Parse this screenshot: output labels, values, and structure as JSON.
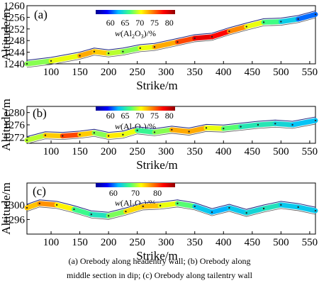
{
  "caption": {
    "line1": "(a) Orebody along headentry wall; (b) Orebody along",
    "line2": "middle section in dip; (c) Orebody along tailentry wall"
  },
  "chart_data": [
    {
      "type": "line",
      "panel_label": "(a)",
      "xlabel": "Strike/m",
      "ylabel": "Altitude/m",
      "xlim": [
        58,
        560
      ],
      "ylim": [
        1240,
        1260
      ],
      "xticks": [
        100,
        150,
        200,
        250,
        300,
        350,
        400,
        450,
        500,
        550
      ],
      "yticks": [
        1240,
        1244,
        1248,
        1252,
        1256,
        1260
      ],
      "colorbar": {
        "label": "w(Al2O3)/%",
        "label_parts": [
          "w",
          "(Al",
          "2",
          "O",
          "3",
          ")/%"
        ],
        "range": [
          55,
          82
        ],
        "ticks": [
          60,
          65,
          70,
          75,
          80
        ],
        "colors": [
          "#00008f",
          "#0000ff",
          "#00bfff",
          "#40ff80",
          "#ffff00",
          "#ff8000",
          "#ff0000",
          "#8f0000"
        ]
      },
      "series": [
        {
          "x": [
            58,
            100,
            150,
            175,
            200,
            225,
            255,
            280,
            320,
            350,
            380,
            410,
            440,
            470,
            500,
            530,
            560
          ],
          "y": [
            1240,
            1241,
            1242.8,
            1244.2,
            1243.6,
            1244.2,
            1245.4,
            1245.8,
            1247.5,
            1248.8,
            1249.3,
            1251.2,
            1252.8,
            1254.3,
            1254.5,
            1255.4,
            1257
          ],
          "values": [
            68,
            68,
            72,
            74,
            70,
            68,
            68,
            72,
            74,
            78,
            80,
            76,
            72,
            68,
            65,
            62,
            60
          ]
        }
      ]
    },
    {
      "type": "line",
      "panel_label": "(b)",
      "xlabel": "Strike/m",
      "ylabel": "Altitude/m",
      "xlim": [
        58,
        560
      ],
      "ylim": [
        1270,
        1282
      ],
      "xticks": [
        100,
        150,
        200,
        250,
        300,
        350,
        400,
        450,
        500,
        550
      ],
      "yticks": [
        1272,
        1276,
        1280
      ],
      "colorbar": {
        "label": "w(Al2O3)/%",
        "label_parts": [
          "w",
          "(Al",
          "2",
          "O",
          "3",
          ")/%"
        ],
        "range": [
          55,
          82
        ],
        "ticks": [
          60,
          65,
          70,
          75,
          80
        ],
        "colors": [
          "#00008f",
          "#0000ff",
          "#00bfff",
          "#40ff80",
          "#ffff00",
          "#ff8000",
          "#ff0000",
          "#8f0000"
        ]
      },
      "series": [
        {
          "x": [
            58,
            90,
            120,
            150,
            175,
            200,
            225,
            250,
            280,
            310,
            340,
            370,
            400,
            430,
            460,
            490,
            520,
            560
          ],
          "y": [
            1271,
            1272.6,
            1272.4,
            1272.8,
            1273.4,
            1272.4,
            1272.8,
            1274.2,
            1273.6,
            1274.4,
            1273.8,
            1275.0,
            1274.8,
            1275.4,
            1276.0,
            1276.4,
            1276.0,
            1277.4
          ],
          "values": [
            68,
            70,
            74,
            78,
            66,
            70,
            72,
            68,
            64,
            72,
            74,
            72,
            68,
            66,
            64,
            66,
            62,
            64
          ]
        }
      ]
    },
    {
      "type": "line",
      "panel_label": "(c)",
      "xlabel": "Strike/m",
      "ylabel": "Altitude/m",
      "xlim": [
        58,
        560
      ],
      "ylim": [
        1292,
        1306
      ],
      "xticks": [
        100,
        150,
        200,
        250,
        300,
        350,
        400,
        450,
        500,
        550
      ],
      "yticks": [
        1296,
        1300
      ],
      "colorbar": {
        "label": "w(Al2O3)/%",
        "label_parts": [
          "w",
          "(Al",
          "2",
          "O",
          "3",
          ")/%"
        ],
        "range": [
          52,
          88
        ],
        "ticks": [
          60,
          70,
          80
        ],
        "colors": [
          "#00008f",
          "#0000ff",
          "#00bfff",
          "#40ff80",
          "#ffff00",
          "#ff8000",
          "#ff0000",
          "#8f0000"
        ]
      },
      "series": [
        {
          "x": [
            58,
            80,
            110,
            140,
            170,
            200,
            230,
            260,
            290,
            320,
            350,
            380,
            410,
            440,
            470,
            500,
            530,
            560
          ],
          "y": [
            1299.2,
            1300.4,
            1300.0,
            1298.8,
            1297.4,
            1297.0,
            1298.2,
            1299.6,
            1299.8,
            1300.4,
            1299.6,
            1298.0,
            1299.2,
            1297.8,
            1299.0,
            1300.0,
            1299.4,
            1298.4
          ],
          "values": [
            72,
            78,
            76,
            70,
            64,
            66,
            72,
            76,
            74,
            70,
            66,
            60,
            64,
            62,
            66,
            64,
            62,
            64
          ]
        }
      ]
    }
  ]
}
